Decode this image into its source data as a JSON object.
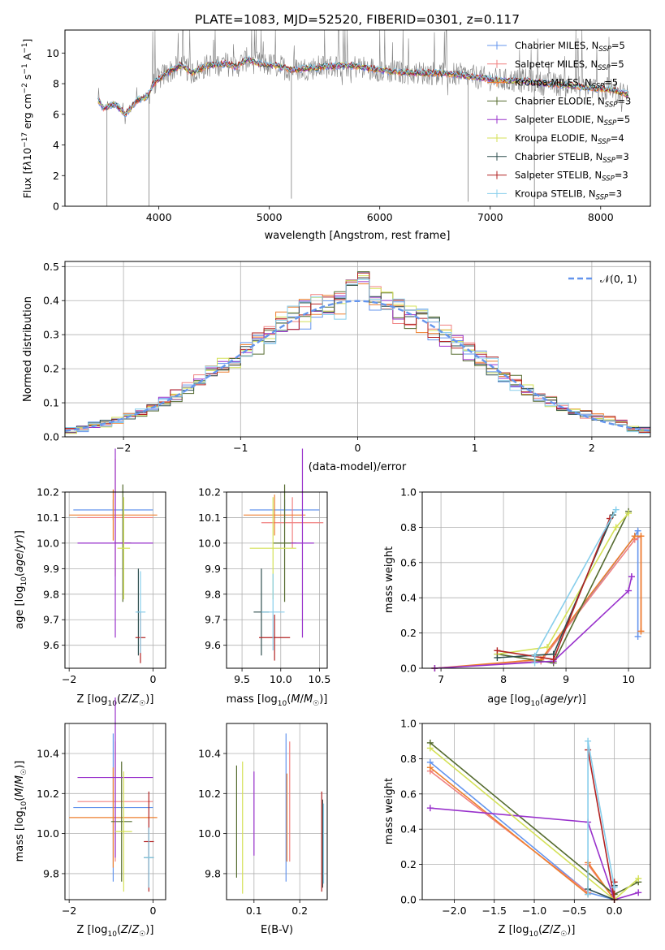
{
  "colors": {
    "chabrier_miles": "#6495ed",
    "salpeter_miles": "#f08080",
    "kroupa_miles": "#ee7f2d",
    "chabrier_elodie": "#556b2f",
    "salpeter_elodie": "#9932cc",
    "kroupa_elodie": "#d4e157",
    "chabrier_stelib": "#2f4f4f",
    "salpeter_stelib": "#b22222",
    "kroupa_stelib": "#87ceeb",
    "data": "#808080"
  },
  "chart_data": [
    {
      "id": "spectrum",
      "type": "line",
      "title": "PLATE=1083, MJD=52520, FIBERID=0301, z=0.117",
      "xlabel": "wavelength [Angstrom, rest frame]",
      "ylabel": "Flux [f_λ10^{-17} erg cm^{-2} s^{-1} A^{-1}]",
      "xlim": [
        3150,
        8450
      ],
      "ylim": [
        0,
        11.5
      ],
      "xticks": [
        "4000",
        "5000",
        "6000",
        "7000",
        "8000"
      ],
      "yticks": [
        "0",
        "2",
        "4",
        "6",
        "8",
        "10"
      ],
      "grid": false,
      "legend_placement": "top-right",
      "legend": [
        {
          "name": "Chabrier MILES, N_SSP=5",
          "color_key": "chabrier_miles"
        },
        {
          "name": "Salpeter MILES, N_SSP=5",
          "color_key": "salpeter_miles"
        },
        {
          "name": "Kroupa MILES, N_SSP=5",
          "color_key": "kroupa_miles"
        },
        {
          "name": "Chabrier ELODIE, N_SSP=3",
          "color_key": "chabrier_elodie"
        },
        {
          "name": "Salpeter ELODIE, N_SSP=5",
          "color_key": "salpeter_elodie"
        },
        {
          "name": "Kroupa ELODIE, N_SSP=4",
          "color_key": "kroupa_elodie"
        },
        {
          "name": "Chabrier STELIB, N_SSP=3",
          "color_key": "chabrier_stelib"
        },
        {
          "name": "Salpeter STELIB, N_SSP=3",
          "color_key": "salpeter_stelib"
        },
        {
          "name": "Kroupa STELIB, N_SSP=3",
          "color_key": "kroupa_stelib"
        }
      ],
      "spectrum_knots": [
        [
          3450,
          6.9
        ],
        [
          3500,
          6.4
        ],
        [
          3600,
          6.7
        ],
        [
          3700,
          6.0
        ],
        [
          3800,
          6.9
        ],
        [
          3900,
          7.2
        ],
        [
          3950,
          8.0
        ],
        [
          4050,
          8.6
        ],
        [
          4200,
          9.2
        ],
        [
          4300,
          8.7
        ],
        [
          4450,
          9.2
        ],
        [
          4600,
          9.3
        ],
        [
          4700,
          9.1
        ],
        [
          4800,
          9.6
        ],
        [
          4900,
          9.3
        ],
        [
          5050,
          9.2
        ],
        [
          5200,
          8.9
        ],
        [
          5350,
          9.0
        ],
        [
          5500,
          9.1
        ],
        [
          5700,
          9.2
        ],
        [
          5900,
          9.0
        ],
        [
          6100,
          8.8
        ],
        [
          6300,
          8.7
        ],
        [
          6500,
          8.7
        ],
        [
          6700,
          8.6
        ],
        [
          6900,
          8.4
        ],
        [
          7100,
          8.2
        ],
        [
          7300,
          8.2
        ],
        [
          7500,
          8.0
        ],
        [
          7700,
          7.9
        ],
        [
          7900,
          7.7
        ],
        [
          8100,
          7.6
        ],
        [
          8250,
          7.3
        ]
      ],
      "absorption_lines": [
        [
          3530,
          0
        ],
        [
          3910,
          0
        ],
        [
          5200,
          0.5
        ],
        [
          6800,
          0.3
        ],
        [
          7400,
          0
        ]
      ]
    },
    {
      "id": "residuals",
      "type": "line",
      "xlabel": "(data-model)/error",
      "ylabel": "Normed distribution",
      "xlim": [
        -2.5,
        2.5
      ],
      "ylim": [
        0,
        0.515
      ],
      "xticks": [
        "−2",
        "−1",
        "0",
        "1",
        "2"
      ],
      "yticks": [
        "0.0",
        "0.1",
        "0.2",
        "0.3",
        "0.4",
        "0.5"
      ],
      "grid": true,
      "legend_placement": "top-right",
      "legend": [
        {
          "name": "𝒩(0, 1)",
          "color_key": "chabrier_miles"
        }
      ]
    },
    {
      "id": "z_age",
      "type": "scatter",
      "xlabel": "Z [log10(Z/Z☉)]",
      "ylabel": "age  [log10(age/yr)]",
      "xlim": [
        -2.1,
        0.3
      ],
      "ylim": [
        9.51,
        10.2
      ],
      "xticks": [
        "−2",
        "0"
      ],
      "yticks": [
        "9.6",
        "9.7",
        "9.8",
        "9.9",
        "10.0",
        "10.1",
        "10.2"
      ],
      "grid": true,
      "points": [
        {
          "c": "chabrier_miles",
          "x": -0.95,
          "xerr": 0.95,
          "y": 10.13,
          "yerr": 0.04
        },
        {
          "c": "salpeter_miles",
          "x": -0.9,
          "xerr": 0.9,
          "y": 10.1,
          "yerr": 0.23
        },
        {
          "c": "kroupa_miles",
          "x": -0.95,
          "xerr": 1.05,
          "y": 10.11,
          "yerr": 0.1
        },
        {
          "c": "chabrier_elodie",
          "x": -0.72,
          "xerr": 0.2,
          "y": 10.0,
          "yerr": 0.23
        },
        {
          "c": "salpeter_elodie",
          "x": -0.9,
          "xerr": 0.9,
          "y": 10.0,
          "yerr": 0.37
        },
        {
          "c": "kroupa_elodie",
          "x": -0.7,
          "xerr": 0.15,
          "y": 9.98,
          "yerr": 0.2
        },
        {
          "c": "chabrier_stelib",
          "x": -0.35,
          "xerr": 0.03,
          "y": 9.73,
          "yerr": 0.17
        },
        {
          "c": "salpeter_stelib",
          "x": -0.3,
          "xerr": 0.12,
          "y": 9.63,
          "yerr": 0.1
        },
        {
          "c": "kroupa_stelib",
          "x": -0.3,
          "xerr": 0.12,
          "y": 9.73,
          "yerr": 0.16
        }
      ]
    },
    {
      "id": "mass_age",
      "type": "scatter",
      "xlabel": "mass [log10(M/M☉)]",
      "xlim": [
        9.3,
        10.6
      ],
      "ylim": [
        9.51,
        10.2
      ],
      "xticks": [
        "9.5",
        "10.0",
        "10.5"
      ],
      "yticks": [
        "9.6",
        "9.7",
        "9.8",
        "9.9",
        "10.0",
        "10.1",
        "10.2"
      ],
      "grid": true,
      "points": [
        {
          "c": "chabrier_miles",
          "x": 10.05,
          "xerr": 0.45,
          "y": 10.13,
          "yerr": 0.04
        },
        {
          "c": "salpeter_miles",
          "x": 10.15,
          "xerr": 0.4,
          "y": 10.08,
          "yerr": 0.1
        },
        {
          "c": "kroupa_miles",
          "x": 9.92,
          "xerr": 0.4,
          "y": 10.11,
          "yerr": 0.08
        },
        {
          "c": "chabrier_elodie",
          "x": 10.05,
          "xerr": 0.15,
          "y": 10.0,
          "yerr": 0.23
        },
        {
          "c": "salpeter_elodie",
          "x": 10.28,
          "xerr": 0.15,
          "y": 10.0,
          "yerr": 0.37
        },
        {
          "c": "kroupa_elodie",
          "x": 9.9,
          "xerr": 0.3,
          "y": 9.98,
          "yerr": 0.2
        },
        {
          "c": "chabrier_stelib",
          "x": 9.75,
          "xerr": 0.1,
          "y": 9.73,
          "yerr": 0.17
        },
        {
          "c": "salpeter_stelib",
          "x": 9.92,
          "xerr": 0.2,
          "y": 9.63,
          "yerr": 0.09
        },
        {
          "c": "kroupa_stelib",
          "x": 9.9,
          "xerr": 0.15,
          "y": 9.73,
          "yerr": 0.15
        }
      ]
    },
    {
      "id": "age_weight",
      "type": "line",
      "xlabel": "age  [log10(age/yr)]",
      "ylabel": "mass weight",
      "xlim": [
        6.7,
        10.35
      ],
      "ylim": [
        0,
        1.0
      ],
      "xticks": [
        "7",
        "8",
        "9",
        "10"
      ],
      "yticks": [
        "0.0",
        "0.2",
        "0.4",
        "0.6",
        "0.8",
        "1.0"
      ],
      "grid": true,
      "series": [
        {
          "c": "chabrier_miles",
          "x": [
            6.9,
            8.6,
            10.1,
            10.15,
            10.15
          ],
          "y": [
            0.0,
            0.04,
            0.75,
            0.78,
            0.18
          ]
        },
        {
          "c": "salpeter_miles",
          "x": [
            6.9,
            8.6,
            10.1,
            10.2,
            10.2
          ],
          "y": [
            0.0,
            0.04,
            0.73,
            0.75,
            0.21
          ]
        },
        {
          "c": "kroupa_miles",
          "x": [
            6.9,
            8.6,
            10.1,
            10.2,
            10.2
          ],
          "y": [
            0.0,
            0.05,
            0.75,
            0.75,
            0.21
          ]
        },
        {
          "c": "chabrier_elodie",
          "x": [
            7.9,
            8.8,
            10.0
          ],
          "y": [
            0.08,
            0.03,
            0.89
          ]
        },
        {
          "c": "salpeter_elodie",
          "x": [
            6.9,
            8.8,
            10.0,
            10.05,
            10.05
          ],
          "y": [
            0.0,
            0.04,
            0.44,
            0.52,
            0.52
          ]
        },
        {
          "c": "kroupa_elodie",
          "x": [
            7.9,
            8.7,
            9.8,
            10.0
          ],
          "y": [
            0.08,
            0.12,
            0.8,
            0.88
          ]
        },
        {
          "c": "chabrier_stelib",
          "x": [
            7.9,
            8.8,
            9.75
          ],
          "y": [
            0.06,
            0.08,
            0.87
          ]
        },
        {
          "c": "salpeter_stelib",
          "x": [
            7.9,
            8.8,
            9.7
          ],
          "y": [
            0.1,
            0.05,
            0.85
          ]
        },
        {
          "c": "kroupa_stelib",
          "x": [
            8.5,
            8.5,
            9.8
          ],
          "y": [
            0.03,
            0.07,
            0.9
          ]
        }
      ]
    },
    {
      "id": "z_mass",
      "type": "scatter",
      "xlabel": "Z [log10(Z/Z☉)]",
      "ylabel": "mass [log10(M/M☉)]",
      "xlim": [
        -2.1,
        0.3
      ],
      "ylim": [
        9.67,
        10.55
      ],
      "xticks": [
        "−2",
        "0"
      ],
      "yticks": [
        "9.8",
        "10.0",
        "10.2",
        "10.4"
      ],
      "grid": true,
      "points": [
        {
          "c": "chabrier_miles",
          "x": -0.95,
          "xerr": 0.95,
          "y": 10.13,
          "yerr": 0.37
        },
        {
          "c": "salpeter_miles",
          "x": -0.9,
          "xerr": 0.9,
          "y": 10.16,
          "yerr": 0.3
        },
        {
          "c": "kroupa_miles",
          "x": -0.95,
          "xerr": 1.05,
          "y": 10.08,
          "yerr": 0.25
        },
        {
          "c": "chabrier_elodie",
          "x": -0.75,
          "xerr": 0.25,
          "y": 10.06,
          "yerr": 0.3
        },
        {
          "c": "salpeter_elodie",
          "x": -0.9,
          "xerr": 0.9,
          "y": 10.28,
          "yerr": 0.4
        },
        {
          "c": "kroupa_elodie",
          "x": -0.7,
          "xerr": 0.2,
          "y": 10.01,
          "yerr": 0.3
        },
        {
          "c": "chabrier_stelib",
          "x": -0.1,
          "xerr": 0.12,
          "y": 9.88,
          "yerr": 0.15
        },
        {
          "c": "salpeter_stelib",
          "x": -0.1,
          "xerr": 0.12,
          "y": 9.96,
          "yerr": 0.25
        },
        {
          "c": "kroupa_stelib",
          "x": -0.1,
          "xerr": 0.12,
          "y": 9.88,
          "yerr": 0.15
        }
      ]
    },
    {
      "id": "ebv_mass",
      "type": "scatter",
      "xlabel": "E(B-V)",
      "xlim": [
        0.04,
        0.26
      ],
      "ylim": [
        9.67,
        10.55
      ],
      "xticks": [
        "0.1",
        "0.2"
      ],
      "yticks": [
        "9.8",
        "10.0",
        "10.2",
        "10.4"
      ],
      "grid": true,
      "points": [
        {
          "c": "chabrier_miles",
          "x": 0.17,
          "y": 10.13,
          "yerr": 0.37
        },
        {
          "c": "salpeter_miles",
          "x": 0.178,
          "y": 10.16,
          "yerr": 0.3
        },
        {
          "c": "kroupa_miles",
          "x": 0.172,
          "y": 10.08,
          "yerr": 0.22
        },
        {
          "c": "chabrier_elodie",
          "x": 0.062,
          "y": 10.06,
          "yerr": 0.28
        },
        {
          "c": "salpeter_elodie",
          "x": 0.1,
          "y": 10.1,
          "yerr": 0.21
        },
        {
          "c": "kroupa_elodie",
          "x": 0.075,
          "y": 10.03,
          "yerr": 0.33
        },
        {
          "c": "chabrier_stelib",
          "x": 0.25,
          "y": 9.95,
          "yerr": 0.22
        },
        {
          "c": "salpeter_stelib",
          "x": 0.248,
          "y": 9.96,
          "yerr": 0.25
        },
        {
          "c": "kroupa_stelib",
          "x": 0.252,
          "y": 9.95,
          "yerr": 0.2
        }
      ]
    },
    {
      "id": "z_weight",
      "type": "line",
      "xlabel": "Z [log10(Z/Z☉)]",
      "ylabel": "mass weight",
      "xlim": [
        -2.4,
        0.45
      ],
      "ylim": [
        0,
        1.0
      ],
      "xticks": [
        "−2.0",
        "−1.5",
        "−1.0",
        "−0.5",
        "0.0"
      ],
      "yticks": [
        "0.0",
        "0.2",
        "0.4",
        "0.6",
        "0.8",
        "1.0"
      ],
      "grid": true,
      "series": [
        {
          "c": "chabrier_miles",
          "x": [
            -2.3,
            -0.33,
            0.0,
            0.0
          ],
          "y": [
            0.78,
            0.04,
            0.0,
            0.08
          ]
        },
        {
          "c": "salpeter_miles",
          "x": [
            -2.3,
            -0.33,
            -0.33,
            0.0
          ],
          "y": [
            0.73,
            0.04,
            0.2,
            0.0
          ]
        },
        {
          "c": "kroupa_miles",
          "x": [
            -2.3,
            -0.33,
            -0.33,
            0.0
          ],
          "y": [
            0.75,
            0.03,
            0.21,
            0.0
          ]
        },
        {
          "c": "chabrier_elodie",
          "x": [
            -2.3,
            0.0,
            0.3
          ],
          "y": [
            0.89,
            0.03,
            0.1
          ]
        },
        {
          "c": "salpeter_elodie",
          "x": [
            -2.3,
            -0.33,
            0.0,
            0.3
          ],
          "y": [
            0.52,
            0.44,
            0.0,
            0.04
          ]
        },
        {
          "c": "kroupa_elodie",
          "x": [
            -2.3,
            0.0,
            0.3
          ],
          "y": [
            0.86,
            0.0,
            0.12
          ]
        },
        {
          "c": "chabrier_stelib",
          "x": [
            -0.33,
            0.0,
            0.0
          ],
          "y": [
            0.06,
            0.0,
            0.08
          ]
        },
        {
          "c": "salpeter_stelib",
          "x": [
            -0.33,
            0.0,
            0.0
          ],
          "y": [
            0.85,
            0.0,
            0.1
          ]
        },
        {
          "c": "kroupa_stelib",
          "x": [
            -0.33,
            -0.33,
            0.0
          ],
          "y": [
            0.03,
            0.9,
            0.07
          ]
        }
      ]
    }
  ]
}
